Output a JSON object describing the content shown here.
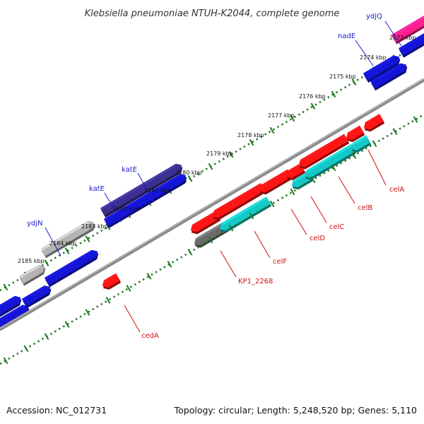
{
  "title": "Klebsiella pneumoniae NTUH-K2044, complete genome",
  "footer": {
    "accession": "Accession: NC_012731",
    "stats": "Topology: circular; Length: 5,248,520 bp; Genes: 5,110"
  },
  "colors": {
    "backbone": "#888888",
    "tick": "#1f7a1f",
    "blue_label": "#1c1cc8",
    "red_label": "#cc1111",
    "gene_blue": "#1515d8",
    "gene_red": "#ff1515",
    "gene_cyan": "#14c8c8",
    "gene_navy": "#3b2f8f",
    "gene_gray": "#b4b4b4",
    "gene_dark": "#6a6a6a",
    "gene_pink": "#ff1f8f"
  },
  "axis": {
    "unit": "kbp",
    "ticks": [
      {
        "kbp": 2173,
        "label": "2173 kbp"
      },
      {
        "kbp": 2174,
        "label": "2174 kbp"
      },
      {
        "kbp": 2175,
        "label": "2175 kbp"
      },
      {
        "kbp": 2176,
        "label": "2176 kbp"
      },
      {
        "kbp": 2177,
        "label": "2177 kbp"
      },
      {
        "kbp": 2178,
        "label": "2178 kbp"
      },
      {
        "kbp": 2179,
        "label": "2179 kbp"
      },
      {
        "kbp": 2180,
        "label": "2180 kbp"
      },
      {
        "kbp": 2181,
        "label": "2181 kbp"
      },
      {
        "kbp": 2182,
        "label": "2182 kbp"
      },
      {
        "kbp": 2183,
        "label": "2183 kbp"
      },
      {
        "kbp": 2184,
        "label": "2184 kbp"
      },
      {
        "kbp": 2185,
        "label": "2185 kbp"
      }
    ]
  },
  "gene_labels_forward": [
    {
      "id": "ydjQ",
      "text": "ydjQ"
    },
    {
      "id": "nadE",
      "text": "nadE"
    },
    {
      "id": "katE-1",
      "text": "katE"
    },
    {
      "id": "katE-2",
      "text": "katE"
    },
    {
      "id": "ydjN",
      "text": "ydjN"
    }
  ],
  "gene_labels_reverse": [
    {
      "id": "celA",
      "text": "celA"
    },
    {
      "id": "celB",
      "text": "celB"
    },
    {
      "id": "celC",
      "text": "celC"
    },
    {
      "id": "celD",
      "text": "celD"
    },
    {
      "id": "celF",
      "text": "celF"
    },
    {
      "id": "KP1_2268",
      "text": "KP1_2268"
    },
    {
      "id": "cedA",
      "text": "cedA"
    }
  ]
}
